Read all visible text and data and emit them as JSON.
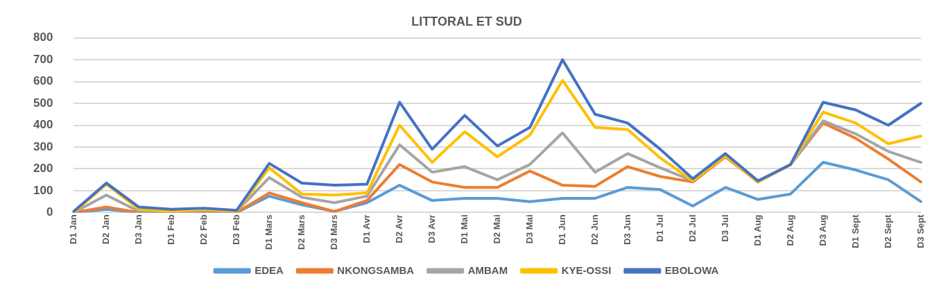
{
  "chart_data": {
    "type": "line",
    "title": "LITTORAL ET SUD",
    "categories": [
      "D1 Jan",
      "D2 Jan",
      "D3 Jan",
      "D1 Feb",
      "D2 Feb",
      "D3 Feb",
      "D1 Mars",
      "D2 Mars",
      "D3 Mars",
      "D1 Avr",
      "D2 Avr",
      "D3 Avr",
      "D1 Mai",
      "D2 Mai",
      "D3 Mai",
      "D1 Jun",
      "D2 Jun",
      "D3 Jun",
      "D1 Jul",
      "D2 Jul",
      "D3 Jul",
      "D1 Aug",
      "D2 Aug",
      "D3 Aug",
      "D1 Sept",
      "D2 Sept",
      "D3 Sept"
    ],
    "series": [
      {
        "name": "EDEA",
        "color": "#5b9bd5",
        "values": [
          0,
          15,
          0,
          0,
          0,
          0,
          75,
          35,
          5,
          45,
          125,
          55,
          65,
          65,
          50,
          65,
          65,
          115,
          105,
          30,
          115,
          60,
          85,
          230,
          195,
          150,
          50
        ]
      },
      {
        "name": "NKONGSAMBA",
        "color": "#ed7d31",
        "values": [
          0,
          25,
          0,
          0,
          0,
          0,
          90,
          45,
          5,
          55,
          220,
          140,
          115,
          115,
          190,
          125,
          120,
          210,
          165,
          140,
          255,
          140,
          220,
          410,
          340,
          245,
          140
        ]
      },
      {
        "name": "AMBAM",
        "color": "#a5a5a5",
        "values": [
          0,
          80,
          5,
          0,
          10,
          5,
          160,
          70,
          45,
          75,
          310,
          185,
          210,
          150,
          220,
          365,
          185,
          270,
          205,
          145,
          260,
          140,
          220,
          420,
          360,
          280,
          230
        ]
      },
      {
        "name": "KYE-OSSI",
        "color": "#ffc000",
        "values": [
          0,
          130,
          15,
          5,
          15,
          5,
          205,
          85,
          80,
          90,
          400,
          230,
          370,
          255,
          355,
          605,
          390,
          380,
          250,
          145,
          260,
          140,
          220,
          460,
          410,
          315,
          350
        ]
      },
      {
        "name": "EBOLOWA",
        "color": "#4472c4",
        "values": [
          5,
          135,
          25,
          15,
          20,
          10,
          225,
          135,
          125,
          130,
          505,
          290,
          445,
          305,
          390,
          700,
          450,
          410,
          290,
          155,
          270,
          145,
          220,
          505,
          470,
          400,
          500
        ]
      }
    ],
    "ylim": [
      0,
      800
    ],
    "yticks": [
      0,
      100,
      200,
      300,
      400,
      500,
      600,
      700,
      800
    ],
    "grid": "y",
    "legend": "bottom",
    "marker": "none",
    "line_style": "solid"
  }
}
